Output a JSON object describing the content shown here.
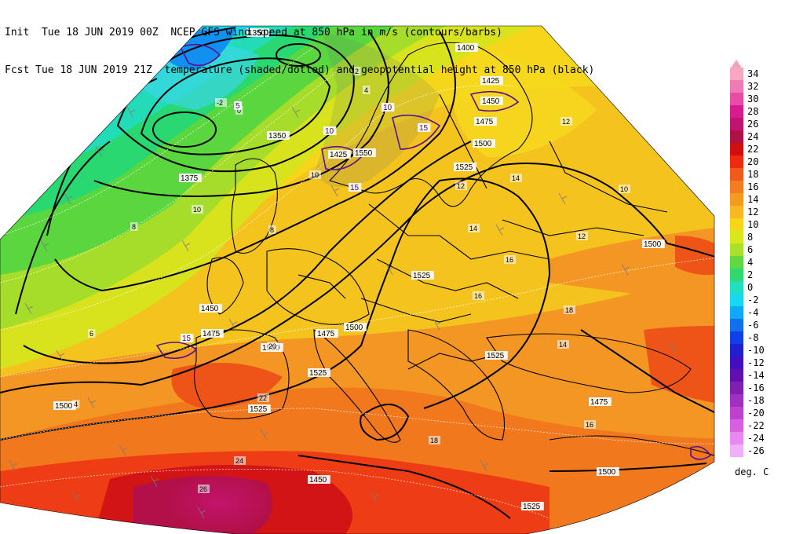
{
  "header": {
    "line1": "Init  Tue 18 JUN 2019 00Z  NCEP GFS wind speed at 850 hPa in m/s (contours/barbs)",
    "line2": "Fcst Tue 18 JUN 2019 21Z  temperature (shaded/dotted) and geopotential height at 850 hPa (black)"
  },
  "colorbar": {
    "units": "deg. C",
    "entries": [
      {
        "label": "34",
        "color": "#f7a8c0"
      },
      {
        "label": "32",
        "color": "#ef7ab4"
      },
      {
        "label": "30",
        "color": "#e84ca6"
      },
      {
        "label": "28",
        "color": "#d81b8e"
      },
      {
        "label": "26",
        "color": "#c0156e"
      },
      {
        "label": "24",
        "color": "#b01048"
      },
      {
        "label": "22",
        "color": "#d01010"
      },
      {
        "label": "20",
        "color": "#f02a10"
      },
      {
        "label": "18",
        "color": "#f05a1a"
      },
      {
        "label": "16",
        "color": "#f47c20"
      },
      {
        "label": "14",
        "color": "#f59a20"
      },
      {
        "label": "12",
        "color": "#f7b820"
      },
      {
        "label": "10",
        "color": "#f7d61a"
      },
      {
        "label": "8",
        "color": "#d8e81a"
      },
      {
        "label": "6",
        "color": "#a8e02a"
      },
      {
        "label": "4",
        "color": "#60d840"
      },
      {
        "label": "2",
        "color": "#30d870"
      },
      {
        "label": "0",
        "color": "#20e0c0"
      },
      {
        "label": "-2",
        "color": "#18d8f0"
      },
      {
        "label": "-4",
        "color": "#10a8f8"
      },
      {
        "label": "-6",
        "color": "#1070f0"
      },
      {
        "label": "-8",
        "color": "#1040e8"
      },
      {
        "label": "-10",
        "color": "#2020d0"
      },
      {
        "label": "-12",
        "color": "#4010c0"
      },
      {
        "label": "-14",
        "color": "#6010b0"
      },
      {
        "label": "-16",
        "color": "#8020b0"
      },
      {
        "label": "-18",
        "color": "#a030c0"
      },
      {
        "label": "-20",
        "color": "#c040d0"
      },
      {
        "label": "-22",
        "color": "#d860e0"
      },
      {
        "label": "-24",
        "color": "#e888f0"
      },
      {
        "label": "-26",
        "color": "#f0b0f8"
      }
    ]
  },
  "height_labels": [
    "1350",
    "1400",
    "1425",
    "1450",
    "1475",
    "1500",
    "1525",
    "1550",
    "1375",
    "1450",
    "1475",
    "1500",
    "1525",
    "1500",
    "1475",
    "1500",
    "1525",
    "1525",
    "1525",
    "1500",
    "1475",
    "1500",
    "1525",
    "1450",
    "1350",
    "1425"
  ],
  "temp_labels": [
    "2",
    "4",
    "0",
    "-2",
    "8",
    "10",
    "12",
    "14",
    "16",
    "18",
    "20",
    "22",
    "24",
    "26",
    "10",
    "12",
    "14",
    "16",
    "18",
    "16",
    "14",
    "12",
    "10",
    "8",
    "6",
    "4"
  ],
  "wind_labels": [
    "15",
    "15",
    "15",
    "5",
    "10",
    "10"
  ]
}
